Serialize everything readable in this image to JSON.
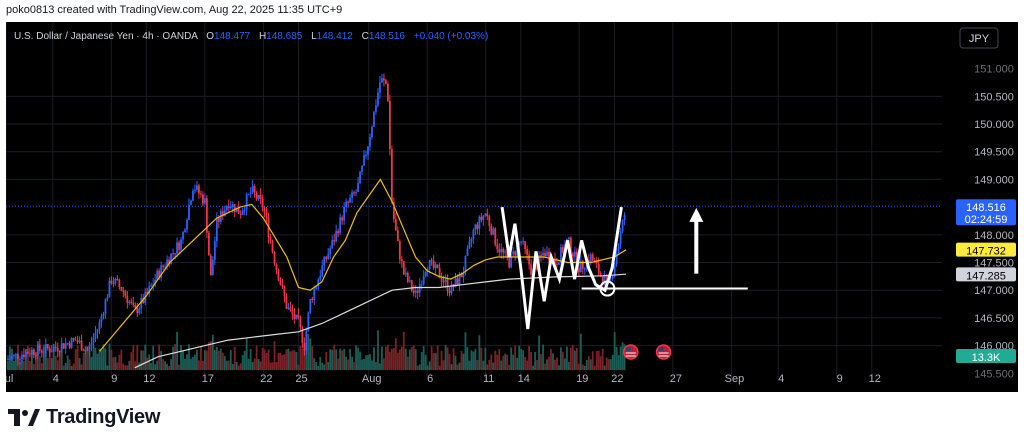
{
  "header": {
    "attribution": "poko0813 created with TradingView.com, Aug 22, 2025 11:35 UTC+9"
  },
  "legend": {
    "symbol": "U.S. Dollar / Japanese Yen · 4h · OANDA",
    "o_label": "O",
    "o_value": "148.477",
    "h_label": "H",
    "h_value": "148.685",
    "l_label": "L",
    "l_value": "148.412",
    "c_label": "C",
    "c_value": "148.516",
    "change": "+0.040 (+0.03%)"
  },
  "currency_badge": "JPY",
  "brand": {
    "name": "TradingView"
  },
  "colors": {
    "background": "#000000",
    "grid": "#1a1d26",
    "bull": "#2962ff",
    "bear": "#f23645",
    "ema_fast": "#f0c000",
    "ma_slow": "#dcdcdc",
    "price_tag": "#2962ff",
    "ema_tag": "#ffeb3b",
    "ma_tag": "#d1d4dc",
    "vol_tag": "#22ab94",
    "vol_bull": "#1b5e57",
    "vol_bear": "#7a2226",
    "text": "#b2b5be",
    "annotation": "#ffffff"
  },
  "chart_data": {
    "type": "candlestick",
    "ylim": [
      145.56,
      151.3
    ],
    "y_ticks": [
      "150.500",
      "150.000",
      "149.500",
      "149.000",
      "148.000",
      "147.500",
      "147.000",
      "146.500",
      "146.000"
    ],
    "top_tick_partial": "151.000",
    "bottom_tick_partial": "145.500",
    "x_ticks": [
      {
        "label": "ul",
        "day": 0
      },
      {
        "label": "4",
        "day": 4
      },
      {
        "label": "9",
        "day": 9
      },
      {
        "label": "12",
        "day": 12
      },
      {
        "label": "17",
        "day": 17
      },
      {
        "label": "22",
        "day": 22
      },
      {
        "label": "25",
        "day": 25
      },
      {
        "label": "Aug",
        "day": 31
      },
      {
        "label": "6",
        "day": 36
      },
      {
        "label": "11",
        "day": 41
      },
      {
        "label": "14",
        "day": 44
      },
      {
        "label": "19",
        "day": 49
      },
      {
        "label": "22",
        "day": 52
      },
      {
        "label": "27",
        "day": 57
      },
      {
        "label": "Sep",
        "day": 62
      },
      {
        "label": "4",
        "day": 66
      },
      {
        "label": "9",
        "day": 71
      },
      {
        "label": "12",
        "day": 74
      }
    ],
    "x_domain": [
      0,
      80
    ],
    "price_line": {
      "value": 148.516,
      "label": "148.516",
      "countdown": "02:24:59"
    },
    "ema_value": {
      "value": 147.732,
      "label": "147.732"
    },
    "ma_value": {
      "value": 147.285,
      "label": "147.285"
    },
    "volume_label": "13.3K",
    "price_path": [
      [
        0,
        145.75
      ],
      [
        2,
        145.9
      ],
      [
        4,
        145.95
      ],
      [
        6,
        146.1
      ],
      [
        7,
        145.9
      ],
      [
        8,
        146.4
      ],
      [
        9,
        147.2
      ],
      [
        10,
        147.0
      ],
      [
        11,
        146.6
      ],
      [
        12,
        146.9
      ],
      [
        13,
        147.3
      ],
      [
        14,
        147.6
      ],
      [
        15,
        147.9
      ],
      [
        16,
        148.9
      ],
      [
        17,
        148.6
      ],
      [
        17.5,
        147.2
      ],
      [
        18,
        148.2
      ],
      [
        19,
        148.6
      ],
      [
        20,
        148.4
      ],
      [
        21,
        148.8
      ],
      [
        22,
        148.5
      ],
      [
        23,
        147.5
      ],
      [
        24,
        146.7
      ],
      [
        25,
        146.4
      ],
      [
        25.5,
        146.0
      ],
      [
        26,
        146.8
      ],
      [
        27,
        147.4
      ],
      [
        28,
        147.9
      ],
      [
        29,
        148.5
      ],
      [
        30,
        148.8
      ],
      [
        31,
        149.7
      ],
      [
        32,
        150.8
      ],
      [
        32.6,
        150.7
      ],
      [
        33,
        148.5
      ],
      [
        33.5,
        147.8
      ],
      [
        34,
        147.3
      ],
      [
        35,
        146.9
      ],
      [
        36,
        147.5
      ],
      [
        37,
        147.3
      ],
      [
        38,
        147.0
      ],
      [
        39,
        147.3
      ],
      [
        40,
        148.1
      ],
      [
        41,
        148.4
      ],
      [
        42,
        147.8
      ],
      [
        43,
        147.5
      ],
      [
        44,
        147.9
      ],
      [
        45,
        147.3
      ],
      [
        46,
        147.7
      ],
      [
        47,
        147.5
      ],
      [
        48,
        147.9
      ],
      [
        49,
        147.4
      ],
      [
        50,
        147.6
      ],
      [
        51,
        147.2
      ],
      [
        51.6,
        147.1
      ],
      [
        52,
        147.5
      ],
      [
        53,
        148.5
      ]
    ],
    "ema_fast": [
      [
        8,
        145.9
      ],
      [
        10,
        146.4
      ],
      [
        12,
        146.9
      ],
      [
        14,
        147.5
      ],
      [
        16,
        147.9
      ],
      [
        18,
        148.3
      ],
      [
        20,
        148.5
      ],
      [
        21,
        148.55
      ],
      [
        22,
        148.3
      ],
      [
        24,
        147.6
      ],
      [
        25,
        147.05
      ],
      [
        26,
        147.0
      ],
      [
        27,
        147.15
      ],
      [
        28,
        147.6
      ],
      [
        29,
        147.9
      ],
      [
        30,
        148.4
      ],
      [
        31,
        148.7
      ],
      [
        32,
        149.0
      ],
      [
        33,
        148.6
      ],
      [
        34,
        148.1
      ],
      [
        35,
        147.6
      ],
      [
        36,
        147.35
      ],
      [
        37,
        147.25
      ],
      [
        38,
        147.2
      ],
      [
        39,
        147.3
      ],
      [
        40,
        147.45
      ],
      [
        41,
        147.55
      ],
      [
        42,
        147.6
      ],
      [
        44,
        147.6
      ],
      [
        46,
        147.6
      ],
      [
        48,
        147.5
      ],
      [
        50,
        147.5
      ],
      [
        52,
        147.6
      ],
      [
        53,
        147.73
      ]
    ],
    "ma_slow": [
      [
        11,
        145.6
      ],
      [
        13,
        145.8
      ],
      [
        15,
        145.9
      ],
      [
        17,
        146.0
      ],
      [
        19,
        146.1
      ],
      [
        21,
        146.15
      ],
      [
        23,
        146.2
      ],
      [
        25,
        146.25
      ],
      [
        27,
        146.4
      ],
      [
        29,
        146.6
      ],
      [
        31,
        146.8
      ],
      [
        33,
        147.0
      ],
      [
        35,
        147.05
      ],
      [
        37,
        147.05
      ],
      [
        39,
        147.1
      ],
      [
        41,
        147.15
      ],
      [
        43,
        147.2
      ],
      [
        45,
        147.22
      ],
      [
        47,
        147.24
      ],
      [
        49,
        147.25
      ],
      [
        51,
        147.26
      ],
      [
        53,
        147.29
      ]
    ],
    "annotations": {
      "zigzag": [
        [
          42.4,
          148.5
        ],
        [
          43,
          147.6
        ],
        [
          43.5,
          148.2
        ],
        [
          44,
          147.4
        ],
        [
          44.6,
          146.3
        ],
        [
          45.3,
          147.7
        ],
        [
          46,
          146.8
        ],
        [
          46.6,
          147.6
        ],
        [
          47.3,
          147.2
        ],
        [
          48,
          147.9
        ],
        [
          48.6,
          147.2
        ],
        [
          49.2,
          147.9
        ],
        [
          49.8,
          147.4
        ],
        [
          50.4,
          147.1
        ],
        [
          51.2,
          147.0
        ],
        [
          51.8,
          147.4
        ],
        [
          52.6,
          148.5
        ]
      ],
      "support_line": {
        "from_day": 49.2,
        "to_day": 63.4,
        "value": 147.03
      },
      "support_circle": {
        "day": 51.4,
        "value": 147.03
      },
      "up_arrow": {
        "day": 59.0,
        "from_value": 147.3,
        "to_value": 148.45
      }
    },
    "event_markers": [
      {
        "day": 53.4
      },
      {
        "day": 56.2
      }
    ],
    "legend": "top-left",
    "grid": true
  }
}
